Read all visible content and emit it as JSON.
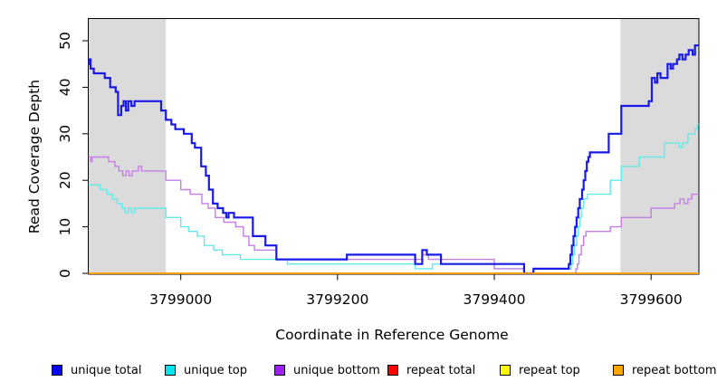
{
  "chart_data": {
    "type": "line",
    "subtype": "step",
    "title": "",
    "xlabel": "Coordinate in Reference Genome",
    "ylabel": "Read Coverage Depth",
    "xlim": [
      3798882,
      3799661
    ],
    "ylim": [
      0,
      50
    ],
    "x_ticks": [
      3799000,
      3799200,
      3799400,
      3799600
    ],
    "y_ticks": [
      0,
      10,
      20,
      30,
      40,
      50
    ],
    "grid": false,
    "legend_position": "bottom",
    "background_color": "#ffffff",
    "shaded_region_color": "#dbdbdb",
    "shaded_regions": [
      {
        "x0": 3798882,
        "x1": 3798981
      },
      {
        "x0": 3799561,
        "x1": 3799661
      }
    ],
    "draw_order": [
      3,
      4,
      1,
      2,
      0,
      5
    ],
    "series": [
      {
        "name": "unique total",
        "legend_color": "#0000ff",
        "line_color": "#1a1ae8",
        "line_width": 2.2,
        "points": [
          [
            3798882,
            45
          ],
          [
            3798883,
            46
          ],
          [
            3798885,
            44
          ],
          [
            3798889,
            43
          ],
          [
            3798903,
            42
          ],
          [
            3798910,
            40
          ],
          [
            3798917,
            39
          ],
          [
            3798920,
            34
          ],
          [
            3798924,
            36
          ],
          [
            3798927,
            37
          ],
          [
            3798930,
            35
          ],
          [
            3798933,
            37
          ],
          [
            3798937,
            36
          ],
          [
            3798941,
            37
          ],
          [
            3798975,
            35
          ],
          [
            3798981,
            33
          ],
          [
            3798988,
            32
          ],
          [
            3798993,
            31
          ],
          [
            3799004,
            30
          ],
          [
            3799014,
            28
          ],
          [
            3799018,
            27
          ],
          [
            3799026,
            23
          ],
          [
            3799032,
            21
          ],
          [
            3799036,
            18
          ],
          [
            3799041,
            15
          ],
          [
            3799047,
            14
          ],
          [
            3799054,
            13
          ],
          [
            3799058,
            12
          ],
          [
            3799061,
            13
          ],
          [
            3799068,
            12
          ],
          [
            3799092,
            8
          ],
          [
            3799108,
            6
          ],
          [
            3799122,
            3
          ],
          [
            3799212,
            4
          ],
          [
            3799299,
            2
          ],
          [
            3799308,
            5
          ],
          [
            3799314,
            4
          ],
          [
            3799332,
            2
          ],
          [
            3799438,
            0
          ],
          [
            3799450,
            1
          ],
          [
            3799495,
            2
          ],
          [
            3799497,
            4
          ],
          [
            3799499,
            6
          ],
          [
            3799501,
            8
          ],
          [
            3799503,
            10
          ],
          [
            3799505,
            12
          ],
          [
            3799507,
            14
          ],
          [
            3799509,
            16
          ],
          [
            3799512,
            18
          ],
          [
            3799514,
            20
          ],
          [
            3799516,
            22
          ],
          [
            3799518,
            24
          ],
          [
            3799520,
            25
          ],
          [
            3799522,
            26
          ],
          [
            3799546,
            30
          ],
          [
            3799562,
            36
          ],
          [
            3799597,
            37
          ],
          [
            3799601,
            42
          ],
          [
            3799605,
            41
          ],
          [
            3799608,
            43
          ],
          [
            3799612,
            42
          ],
          [
            3799621,
            45
          ],
          [
            3799625,
            44
          ],
          [
            3799628,
            45
          ],
          [
            3799633,
            46
          ],
          [
            3799636,
            47
          ],
          [
            3799640,
            46
          ],
          [
            3799644,
            47
          ],
          [
            3799648,
            48
          ],
          [
            3799653,
            47
          ],
          [
            3799656,
            49
          ]
        ]
      },
      {
        "name": "unique top",
        "legend_color": "#00e5ee",
        "line_color": "#63e9ea",
        "line_width": 1.4,
        "points": [
          [
            3798882,
            19
          ],
          [
            3798897,
            18
          ],
          [
            3798906,
            17
          ],
          [
            3798913,
            16
          ],
          [
            3798919,
            15
          ],
          [
            3798925,
            14
          ],
          [
            3798929,
            13
          ],
          [
            3798933,
            14
          ],
          [
            3798937,
            13
          ],
          [
            3798941,
            14
          ],
          [
            3798981,
            12
          ],
          [
            3799000,
            10
          ],
          [
            3799010,
            9
          ],
          [
            3799021,
            8
          ],
          [
            3799030,
            6
          ],
          [
            3799042,
            5
          ],
          [
            3799053,
            4
          ],
          [
            3799076,
            3
          ],
          [
            3799136,
            2
          ],
          [
            3799299,
            1
          ],
          [
            3799321,
            2
          ],
          [
            3799400,
            1
          ],
          [
            3799438,
            0
          ],
          [
            3799450,
            1
          ],
          [
            3799498,
            2
          ],
          [
            3799500,
            4
          ],
          [
            3799502,
            6
          ],
          [
            3799505,
            8
          ],
          [
            3799507,
            10
          ],
          [
            3799509,
            12
          ],
          [
            3799511,
            14
          ],
          [
            3799514,
            16
          ],
          [
            3799519,
            17
          ],
          [
            3799548,
            20
          ],
          [
            3799562,
            23
          ],
          [
            3799585,
            25
          ],
          [
            3799617,
            28
          ],
          [
            3799636,
            27
          ],
          [
            3799640,
            28
          ],
          [
            3799647,
            30
          ],
          [
            3799656,
            31
          ],
          [
            3799659,
            32
          ]
        ]
      },
      {
        "name": "unique bottom",
        "legend_color": "#a020f0",
        "line_color": "#c67ee9",
        "line_width": 1.4,
        "points": [
          [
            3798882,
            25
          ],
          [
            3798885,
            24
          ],
          [
            3798887,
            25
          ],
          [
            3798908,
            24
          ],
          [
            3798916,
            23
          ],
          [
            3798921,
            22
          ],
          [
            3798926,
            21
          ],
          [
            3798930,
            22
          ],
          [
            3798934,
            21
          ],
          [
            3798938,
            22
          ],
          [
            3798946,
            23
          ],
          [
            3798950,
            22
          ],
          [
            3798981,
            20
          ],
          [
            3799000,
            18
          ],
          [
            3799012,
            17
          ],
          [
            3799027,
            15
          ],
          [
            3799035,
            14
          ],
          [
            3799044,
            12
          ],
          [
            3799055,
            11
          ],
          [
            3799070,
            10
          ],
          [
            3799080,
            8
          ],
          [
            3799087,
            6
          ],
          [
            3799094,
            5
          ],
          [
            3799122,
            3
          ],
          [
            3799308,
            4
          ],
          [
            3799316,
            3
          ],
          [
            3799400,
            1
          ],
          [
            3799438,
            0
          ],
          [
            3799504,
            1
          ],
          [
            3799506,
            2
          ],
          [
            3799508,
            4
          ],
          [
            3799511,
            6
          ],
          [
            3799514,
            8
          ],
          [
            3799517,
            9
          ],
          [
            3799548,
            10
          ],
          [
            3799562,
            12
          ],
          [
            3799600,
            14
          ],
          [
            3799630,
            15
          ],
          [
            3799637,
            16
          ],
          [
            3799642,
            15
          ],
          [
            3799647,
            16
          ],
          [
            3799652,
            17
          ]
        ]
      },
      {
        "name": "repeat total",
        "legend_color": "#ff0000",
        "line_color": "#ff0000",
        "line_width": 1.4,
        "points": [
          [
            3798882,
            0
          ]
        ]
      },
      {
        "name": "repeat top",
        "legend_color": "#ffff00",
        "line_color": "#ffff00",
        "line_width": 1.4,
        "points": [
          [
            3798882,
            0
          ]
        ]
      },
      {
        "name": "repeat bottom",
        "legend_color": "#ffa500",
        "line_color": "#ff9e00",
        "line_width": 1.7,
        "points": [
          [
            3798882,
            0
          ]
        ]
      }
    ]
  },
  "legend_item_lefts": [
    57,
    182,
    303,
    428,
    552,
    677
  ]
}
